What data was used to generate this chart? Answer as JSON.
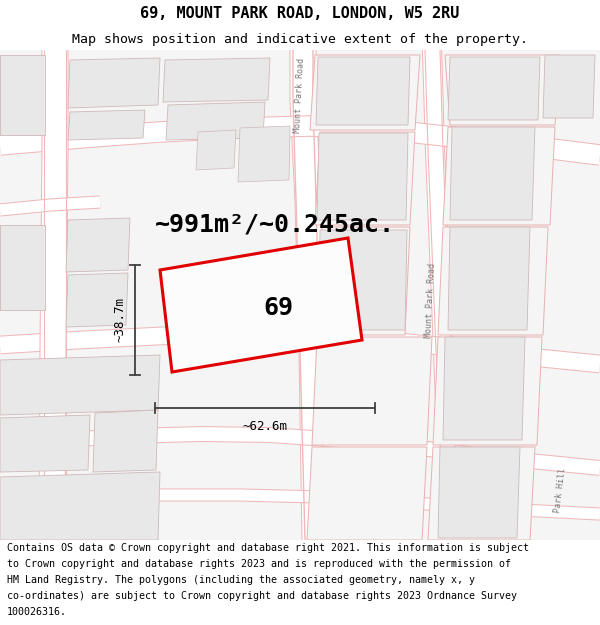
{
  "title_line1": "69, MOUNT PARK ROAD, LONDON, W5 2RU",
  "title_line2": "Map shows position and indicative extent of the property.",
  "footer_lines": [
    "Contains OS data © Crown copyright and database right 2021. This information is subject",
    "to Crown copyright and database rights 2023 and is reproduced with the permission of",
    "HM Land Registry. The polygons (including the associated geometry, namely x, y",
    "co-ordinates) are subject to Crown copyright and database rights 2023 Ordnance Survey",
    "100026316."
  ],
  "area_text": "~991m²/~0.245ac.",
  "label_69": "69",
  "dim_width": "~62.6m",
  "dim_height": "~38.7m",
  "road_label_top": "Mount Park Road",
  "road_label_mid": "Mount Park Road",
  "park_hill": "Park Hill",
  "bg_color": "#ffffff",
  "map_bg": "#f7f7f7",
  "road_fill": "#ffffff",
  "road_edge": "#f0b8b8",
  "building_fill": "#e8e8e8",
  "building_edge": "#d0b8b8",
  "plot_fill": "#f5f5f5",
  "plot_edge": "#e8b0b0",
  "red_color": "#e00000",
  "dim_color": "#404040",
  "title_fs": 11,
  "subtitle_fs": 9.5,
  "footer_fs": 7.2,
  "area_fs": 18,
  "label_fs": 18,
  "dim_fs": 9
}
